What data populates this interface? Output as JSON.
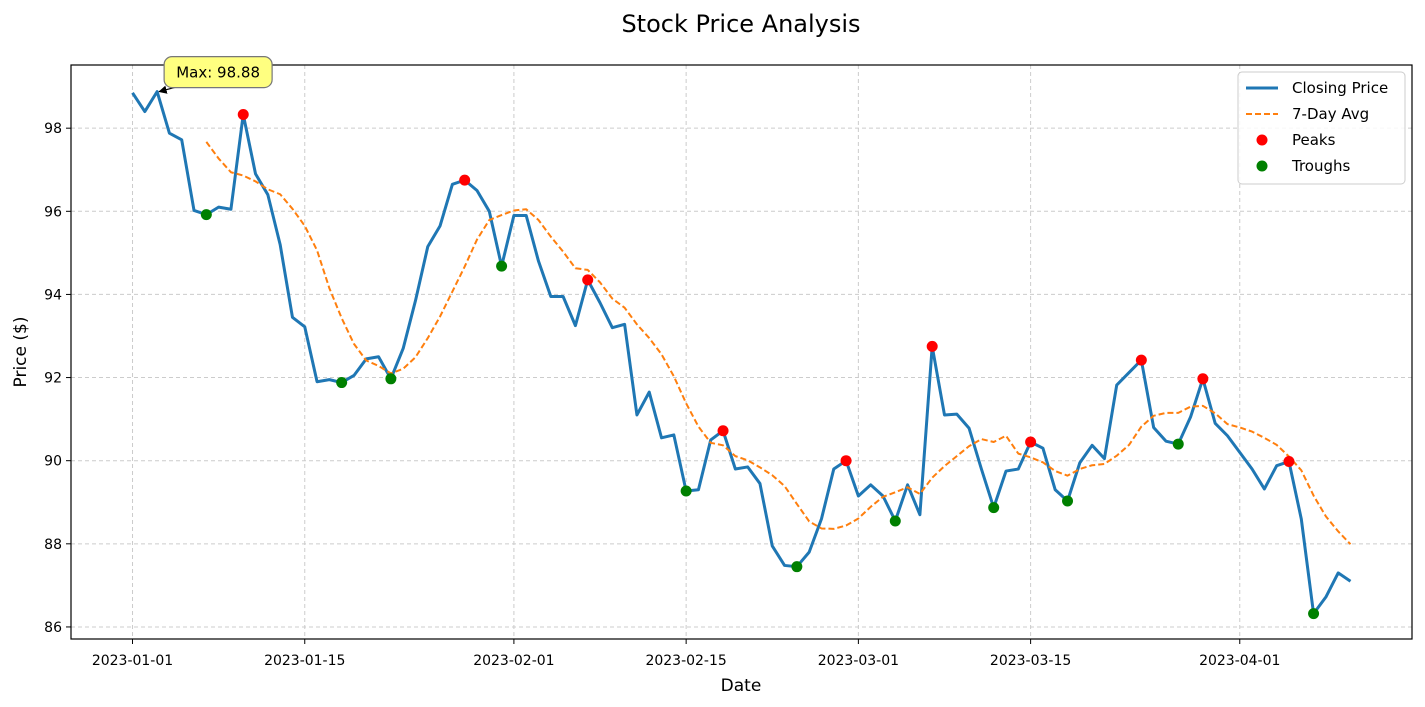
{
  "chart_data": {
    "type": "line",
    "title": "Stock Price Analysis",
    "xlabel": "Date",
    "ylabel": "Price ($)",
    "x": [
      "2023-01-01",
      "2023-01-02",
      "2023-01-03",
      "2023-01-04",
      "2023-01-05",
      "2023-01-06",
      "2023-01-07",
      "2023-01-08",
      "2023-01-09",
      "2023-01-10",
      "2023-01-11",
      "2023-01-12",
      "2023-01-13",
      "2023-01-14",
      "2023-01-15",
      "2023-01-16",
      "2023-01-17",
      "2023-01-18",
      "2023-01-19",
      "2023-01-20",
      "2023-01-21",
      "2023-01-22",
      "2023-01-23",
      "2023-01-24",
      "2023-01-25",
      "2023-01-26",
      "2023-01-27",
      "2023-01-28",
      "2023-01-29",
      "2023-01-30",
      "2023-01-31",
      "2023-02-01",
      "2023-02-02",
      "2023-02-03",
      "2023-02-04",
      "2023-02-05",
      "2023-02-06",
      "2023-02-07",
      "2023-02-08",
      "2023-02-09",
      "2023-02-10",
      "2023-02-11",
      "2023-02-12",
      "2023-02-13",
      "2023-02-14",
      "2023-02-15",
      "2023-02-16",
      "2023-02-17",
      "2023-02-18",
      "2023-02-19",
      "2023-02-20",
      "2023-02-21",
      "2023-02-22",
      "2023-02-23",
      "2023-02-24",
      "2023-02-25",
      "2023-02-26",
      "2023-02-27",
      "2023-02-28",
      "2023-03-01",
      "2023-03-02",
      "2023-03-03",
      "2023-03-04",
      "2023-03-05",
      "2023-03-06",
      "2023-03-07",
      "2023-03-08",
      "2023-03-09",
      "2023-03-10",
      "2023-03-11",
      "2023-03-12",
      "2023-03-13",
      "2023-03-14",
      "2023-03-15",
      "2023-03-16",
      "2023-03-17",
      "2023-03-18",
      "2023-03-19",
      "2023-03-20",
      "2023-03-21",
      "2023-03-22",
      "2023-03-23",
      "2023-03-24",
      "2023-03-25",
      "2023-03-26",
      "2023-03-27",
      "2023-03-28",
      "2023-03-29",
      "2023-03-30",
      "2023-03-31",
      "2023-04-01",
      "2023-04-02",
      "2023-04-03",
      "2023-04-04",
      "2023-04-05",
      "2023-04-06",
      "2023-04-07",
      "2023-04-08",
      "2023-04-09",
      "2023-04-10"
    ],
    "series": [
      {
        "name": "Closing Price",
        "color": "#1f77b4",
        "style": "solid",
        "values": [
          98.85,
          98.4,
          98.88,
          97.88,
          97.72,
          96.02,
          95.92,
          96.1,
          96.05,
          98.33,
          96.9,
          96.4,
          95.2,
          93.45,
          93.22,
          91.9,
          91.95,
          91.88,
          92.05,
          92.45,
          92.5,
          91.97,
          92.7,
          93.85,
          95.15,
          95.65,
          96.65,
          96.75,
          96.5,
          96.0,
          94.68,
          95.9,
          95.9,
          94.8,
          93.95,
          93.95,
          93.25,
          94.35,
          93.8,
          93.2,
          93.28,
          91.1,
          91.65,
          90.55,
          90.62,
          89.27,
          89.3,
          90.5,
          90.72,
          89.8,
          89.85,
          89.45,
          87.95,
          87.48,
          87.45,
          87.8,
          88.6,
          89.8,
          90.0,
          89.15,
          89.42,
          89.15,
          88.55,
          89.42,
          88.7,
          92.75,
          91.1,
          91.12,
          90.78,
          89.8,
          88.87,
          89.75,
          89.8,
          90.45,
          90.3,
          89.3,
          89.03,
          89.95,
          90.37,
          90.05,
          91.82,
          92.12,
          92.42,
          90.8,
          90.47,
          90.4,
          91.05,
          91.97,
          90.9,
          90.6,
          90.2,
          89.8,
          89.32,
          89.88,
          89.98,
          88.6,
          86.32,
          86.72,
          87.3,
          87.1
        ]
      },
      {
        "name": "7-Day Avg",
        "color": "#ff7f0e",
        "style": "dashed",
        "values": [
          null,
          null,
          null,
          null,
          null,
          null,
          97.67,
          97.27,
          96.94,
          96.86,
          96.72,
          96.53,
          96.41,
          96.06,
          95.65,
          95.06,
          94.15,
          93.43,
          92.81,
          92.41,
          92.28,
          92.1,
          92.21,
          92.49,
          92.95,
          93.47,
          94.07,
          94.67,
          95.32,
          95.79,
          95.91,
          96.02,
          96.05,
          95.79,
          95.39,
          95.03,
          94.63,
          94.59,
          94.29,
          93.9,
          93.68,
          93.28,
          92.95,
          92.56,
          92.03,
          91.38,
          90.82,
          90.43,
          90.37,
          90.11,
          90.01,
          89.84,
          89.65,
          89.39,
          88.96,
          88.54,
          88.37,
          88.36,
          88.44,
          88.61,
          88.89,
          89.13,
          89.24,
          89.36,
          89.2,
          89.59,
          89.87,
          90.11,
          90.35,
          90.52,
          90.45,
          90.6,
          90.17,
          90.08,
          89.96,
          89.75,
          89.64,
          89.8,
          89.89,
          89.92,
          90.12,
          90.38,
          90.82,
          91.08,
          91.15,
          91.15,
          91.3,
          91.32,
          91.14,
          90.88,
          90.8,
          90.7,
          90.55,
          90.38,
          90.1,
          89.77,
          89.16,
          88.66,
          88.3,
          87.99
        ]
      },
      {
        "name": "Peaks",
        "type": "scatter",
        "color": "#ff0000",
        "x": [
          "2023-01-10",
          "2023-01-28",
          "2023-02-07",
          "2023-02-18",
          "2023-02-28",
          "2023-03-07",
          "2023-03-15",
          "2023-03-24",
          "2023-03-29",
          "2023-04-05"
        ],
        "values": [
          98.33,
          96.75,
          94.35,
          90.72,
          90.0,
          92.75,
          90.45,
          92.42,
          91.97,
          89.98
        ]
      },
      {
        "name": "Troughs",
        "type": "scatter",
        "color": "#008000",
        "x": [
          "2023-01-07",
          "2023-01-18",
          "2023-01-22",
          "2023-01-31",
          "2023-02-15",
          "2023-02-24",
          "2023-03-04",
          "2023-03-12",
          "2023-03-18",
          "2023-03-27",
          "2023-04-07"
        ],
        "values": [
          95.92,
          91.88,
          91.97,
          94.68,
          89.27,
          87.45,
          88.55,
          88.87,
          89.03,
          90.4,
          86.32
        ]
      }
    ],
    "annotations": [
      {
        "text": "Max: 98.88",
        "x": "2023-01-03",
        "y": 98.88
      }
    ],
    "xlim": [
      "2022-12-27",
      "2023-04-15"
    ],
    "xticks": [
      "2023-01-01",
      "2023-01-15",
      "2023-02-01",
      "2023-02-15",
      "2023-03-01",
      "2023-03-15",
      "2023-04-01"
    ],
    "ylim": [
      85.71,
      99.52
    ],
    "yticks": [
      86,
      88,
      90,
      92,
      94,
      96,
      98
    ],
    "grid": true,
    "legend": "upper right"
  }
}
